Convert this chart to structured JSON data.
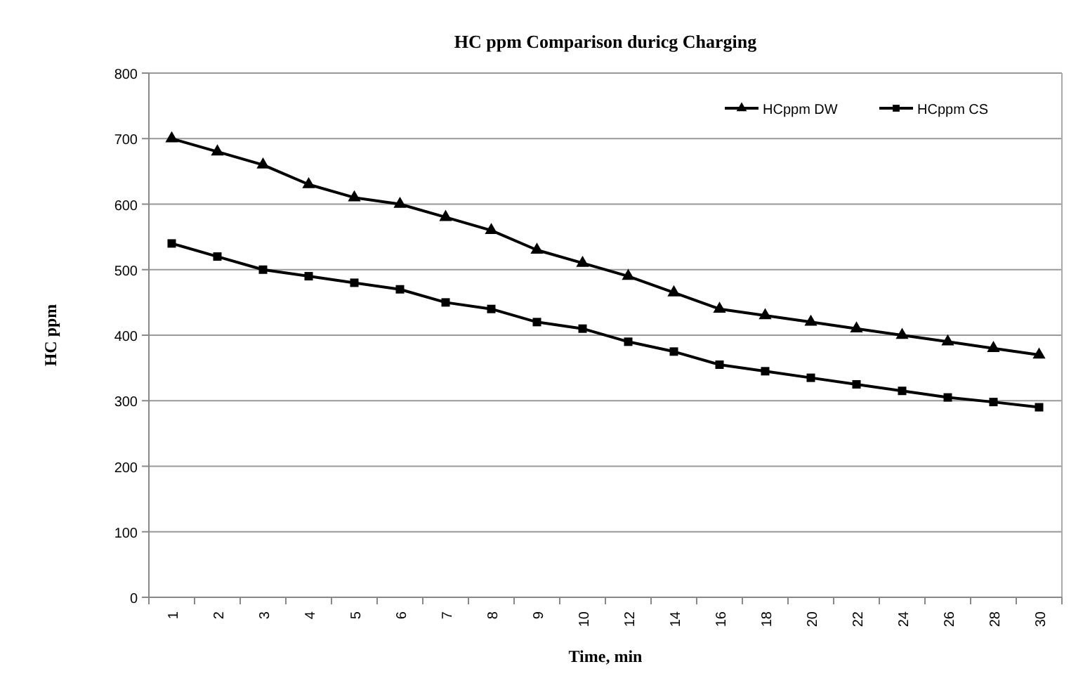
{
  "chart_data": {
    "type": "line",
    "title": "HC ppm  Comparison duricg Charging",
    "xlabel": "Time, min",
    "ylabel": "HC ppm",
    "categories": [
      "1",
      "2",
      "3",
      "4",
      "5",
      "6",
      "7",
      "8",
      "9",
      "10",
      "12",
      "14",
      "16",
      "18",
      "20",
      "22",
      "24",
      "26",
      "28",
      "30"
    ],
    "series": [
      {
        "name": "HCppm DW",
        "color": "#000000",
        "marker": "triangle",
        "values": [
          700,
          680,
          660,
          630,
          610,
          600,
          580,
          560,
          530,
          510,
          490,
          465,
          440,
          430,
          420,
          410,
          400,
          390,
          380,
          370
        ]
      },
      {
        "name": "HCppm CS",
        "color": "#000000",
        "marker": "square",
        "values": [
          540,
          520,
          500,
          490,
          480,
          470,
          450,
          440,
          420,
          410,
          390,
          375,
          355,
          345,
          335,
          325,
          315,
          305,
          298,
          290
        ]
      }
    ],
    "ylim": [
      0,
      800
    ],
    "yticks": [
      0,
      100,
      200,
      300,
      400,
      500,
      600,
      700,
      800
    ],
    "grid": "y",
    "legend": "top right",
    "line_style": "solid"
  }
}
